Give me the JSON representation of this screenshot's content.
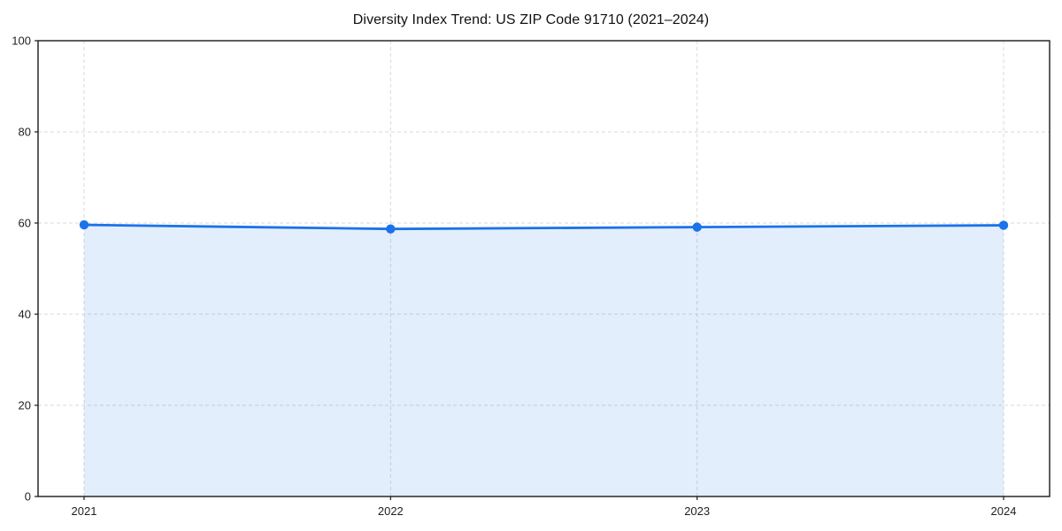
{
  "chart_data": {
    "type": "line",
    "title": "Diversity Index Trend: US ZIP Code 91710 (2021–2024)",
    "categories": [
      "2021",
      "2022",
      "2023",
      "2024"
    ],
    "series": [
      {
        "name": "diversity-index",
        "values": [
          59.6,
          58.7,
          59.1,
          59.5
        ]
      }
    ],
    "xlabel": "",
    "ylabel": "",
    "ylim": [
      0,
      100
    ],
    "yticks": [
      0,
      20,
      40,
      60,
      80,
      100
    ],
    "legend": "none",
    "grid": {
      "visible": true,
      "style": "dashed"
    },
    "area_fill": true,
    "colors": {
      "line": "#1a73e8",
      "marker": "#1a73e8",
      "fill": "#1a73e8",
      "fill_opacity": 0.12,
      "grid": "#d9d9d9",
      "axis": "#1a1a1a",
      "tick_label": "#1f1f1f",
      "title": "#111111",
      "background": "#ffffff"
    }
  }
}
